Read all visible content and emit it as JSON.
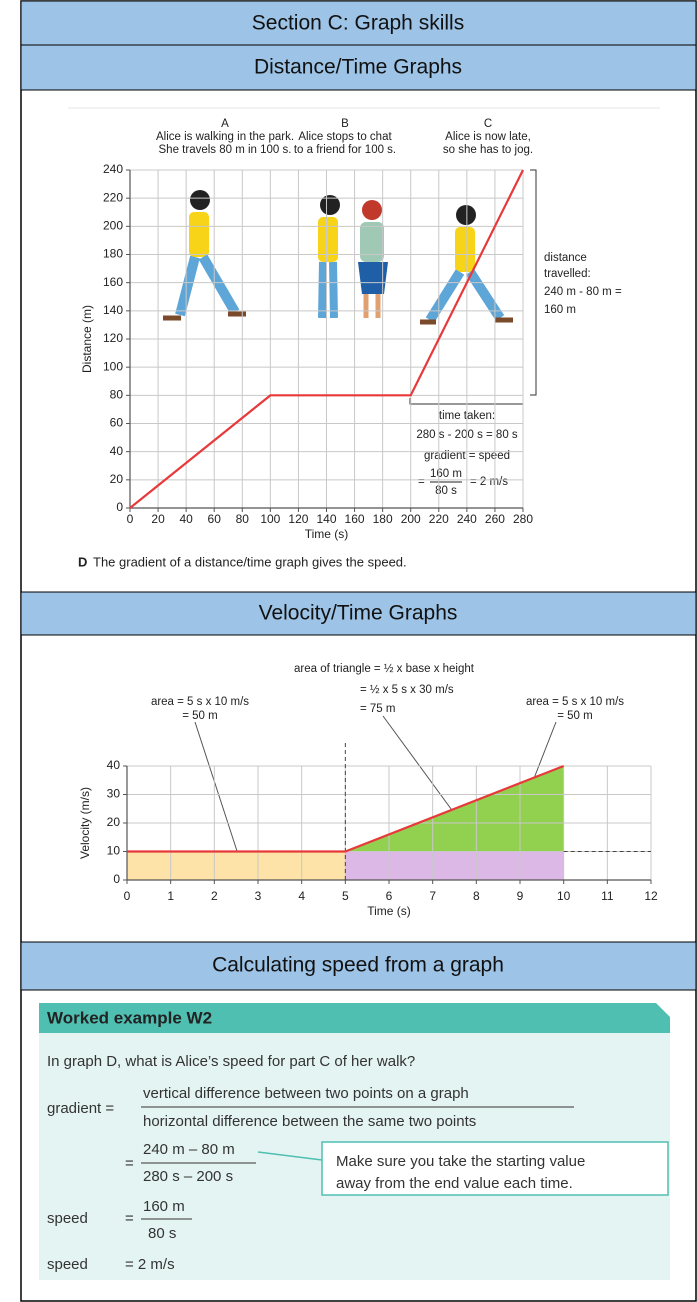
{
  "header": "Section C: Graph skills",
  "distance_time": {
    "heading": "Distance/Time Graphs",
    "chart": {
      "type": "line",
      "x": [
        0,
        100,
        200,
        280
      ],
      "values": [
        0,
        80,
        80,
        240
      ],
      "color": "#e8393a",
      "xlim": [
        0,
        280
      ],
      "ylim": [
        0,
        240
      ],
      "xticks": [
        0,
        20,
        40,
        60,
        80,
        100,
        120,
        140,
        160,
        180,
        200,
        220,
        240,
        260,
        280
      ],
      "yticks": [
        0,
        20,
        40,
        60,
        80,
        100,
        120,
        140,
        160,
        180,
        200,
        220,
        240
      ],
      "grid": true,
      "xlabel": "Time (s)",
      "ylabel": "Distance (m)",
      "stages": [
        {
          "label": "A",
          "text": [
            "Alice is walking in the park.",
            "She travels 80 m in 100 s."
          ]
        },
        {
          "label": "B",
          "text": [
            "Alice stops to chat",
            "to a friend for 100 s."
          ]
        },
        {
          "label": "C",
          "text": [
            "Alice is now late,",
            "so she has to jog."
          ]
        }
      ],
      "distance_note": [
        "distance",
        "travelled:",
        "240 m - 80 m =",
        "160 m"
      ],
      "time_note": [
        "time taken:",
        "280 s - 200 s = 80 s",
        "gradient = speed"
      ],
      "speed_calc": {
        "prefix": "=",
        "numerator": "160 m",
        "denominator": "80 s",
        "result": "= 2 m/s"
      }
    },
    "caption": {
      "label": "D",
      "text": "The gradient of a distance/time graph gives the speed."
    }
  },
  "velocity_time": {
    "heading": "Velocity/Time Graphs",
    "chart": {
      "type": "line",
      "x": [
        0,
        5,
        10
      ],
      "values": [
        10,
        10,
        40
      ],
      "color": "#e8393a",
      "area_colors": [
        "#fde3a7",
        "#dcb8e6",
        "#92d050"
      ],
      "xlim": [
        0,
        12
      ],
      "ylim": [
        0,
        40
      ],
      "xticks": [
        0,
        1,
        2,
        3,
        4,
        5,
        6,
        7,
        8,
        9,
        10,
        11,
        12
      ],
      "yticks": [
        0,
        10,
        20,
        30,
        40
      ],
      "grid": true,
      "xlabel": "Time (s)",
      "ylabel": "Velocity (m/s)",
      "annotations": {
        "triangle": [
          "area of triangle = ½ x base x height",
          "= ½ x 5 s x 30 m/s",
          "= 75 m"
        ],
        "left": [
          "area = 5 s x 10 m/s",
          "= 50 m"
        ],
        "right": [
          "area = 5 s x 10 m/s",
          "= 50 m"
        ]
      }
    }
  },
  "calculating": {
    "heading": "Calculating speed from a graph",
    "worked_example": {
      "title": "Worked example W2",
      "question": "In graph D, what is Alice’s speed for part C of her walk?",
      "gradient": {
        "label": "gradient =",
        "numerator": "vertical difference between two points on a graph",
        "denominator": "horizontal difference between the same two points"
      },
      "substitution": {
        "equals": "=",
        "numerator": "240 m – 80 m",
        "denominator": "280 s – 200 s"
      },
      "callout": [
        "Make sure you take the starting value",
        "away from the end value each time."
      ],
      "speed_step": {
        "label": "speed",
        "equals": "=",
        "numerator": "160 m",
        "denominator": "80 s"
      },
      "result": {
        "label": "speed",
        "value": "= 2 m/s"
      }
    }
  }
}
